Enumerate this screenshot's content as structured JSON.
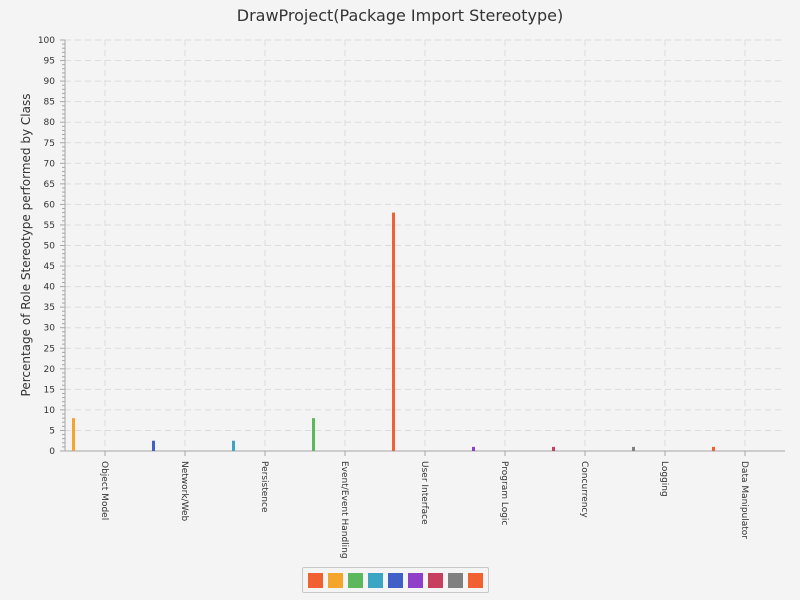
{
  "chart_data": {
    "type": "bar",
    "title": "DrawProject(Package Import Stereotype)",
    "xlabel": "",
    "ylabel": "Percentage of Role Stereotype performed by Class",
    "ylim": [
      0,
      100
    ],
    "yticks": [
      0,
      5,
      10,
      15,
      20,
      25,
      30,
      35,
      40,
      45,
      50,
      55,
      60,
      65,
      70,
      75,
      80,
      85,
      90,
      95,
      100
    ],
    "grid": true,
    "legend_position": "bottom",
    "categories": [
      "Object Model",
      "Network/Web",
      "Persistence",
      "Event/Event Handling",
      "User Interface",
      "Program Logic",
      "Concurrency",
      "Logging",
      "Data Manipulator"
    ],
    "series": [
      {
        "name": "",
        "color": "#f06030",
        "values": [
          0,
          0,
          0,
          0,
          58,
          0,
          0,
          0,
          1
        ]
      },
      {
        "name": "",
        "color": "#f4a52c",
        "values": [
          8,
          0,
          0,
          0,
          0,
          0,
          0,
          0,
          0
        ]
      },
      {
        "name": "",
        "color": "#5cb85c",
        "values": [
          0,
          0,
          0,
          8,
          0,
          0,
          0,
          0,
          0
        ]
      },
      {
        "name": "",
        "color": "#3ba5c4",
        "values": [
          0,
          0,
          2.5,
          0,
          0,
          0,
          0,
          0,
          0
        ]
      },
      {
        "name": "",
        "color": "#4060c8",
        "values": [
          0,
          2.5,
          0,
          0,
          0,
          0,
          0,
          0,
          0
        ]
      },
      {
        "name": "",
        "color": "#9040c8",
        "values": [
          0,
          0,
          0,
          0,
          0,
          1,
          0,
          0,
          0
        ]
      },
      {
        "name": "",
        "color": "#c84060",
        "values": [
          0,
          0,
          0,
          0,
          0,
          0,
          1,
          0,
          0
        ]
      },
      {
        "name": "",
        "color": "#808080",
        "values": [
          0,
          0,
          0,
          0,
          0,
          0,
          0,
          1,
          0
        ]
      },
      {
        "name": "",
        "color": "#f06030",
        "values": [
          0,
          0,
          0,
          0,
          0,
          0,
          0,
          0,
          0
        ]
      }
    ],
    "bar_series_index": [
      1,
      4,
      3,
      2,
      0,
      5,
      6,
      7,
      0
    ]
  }
}
